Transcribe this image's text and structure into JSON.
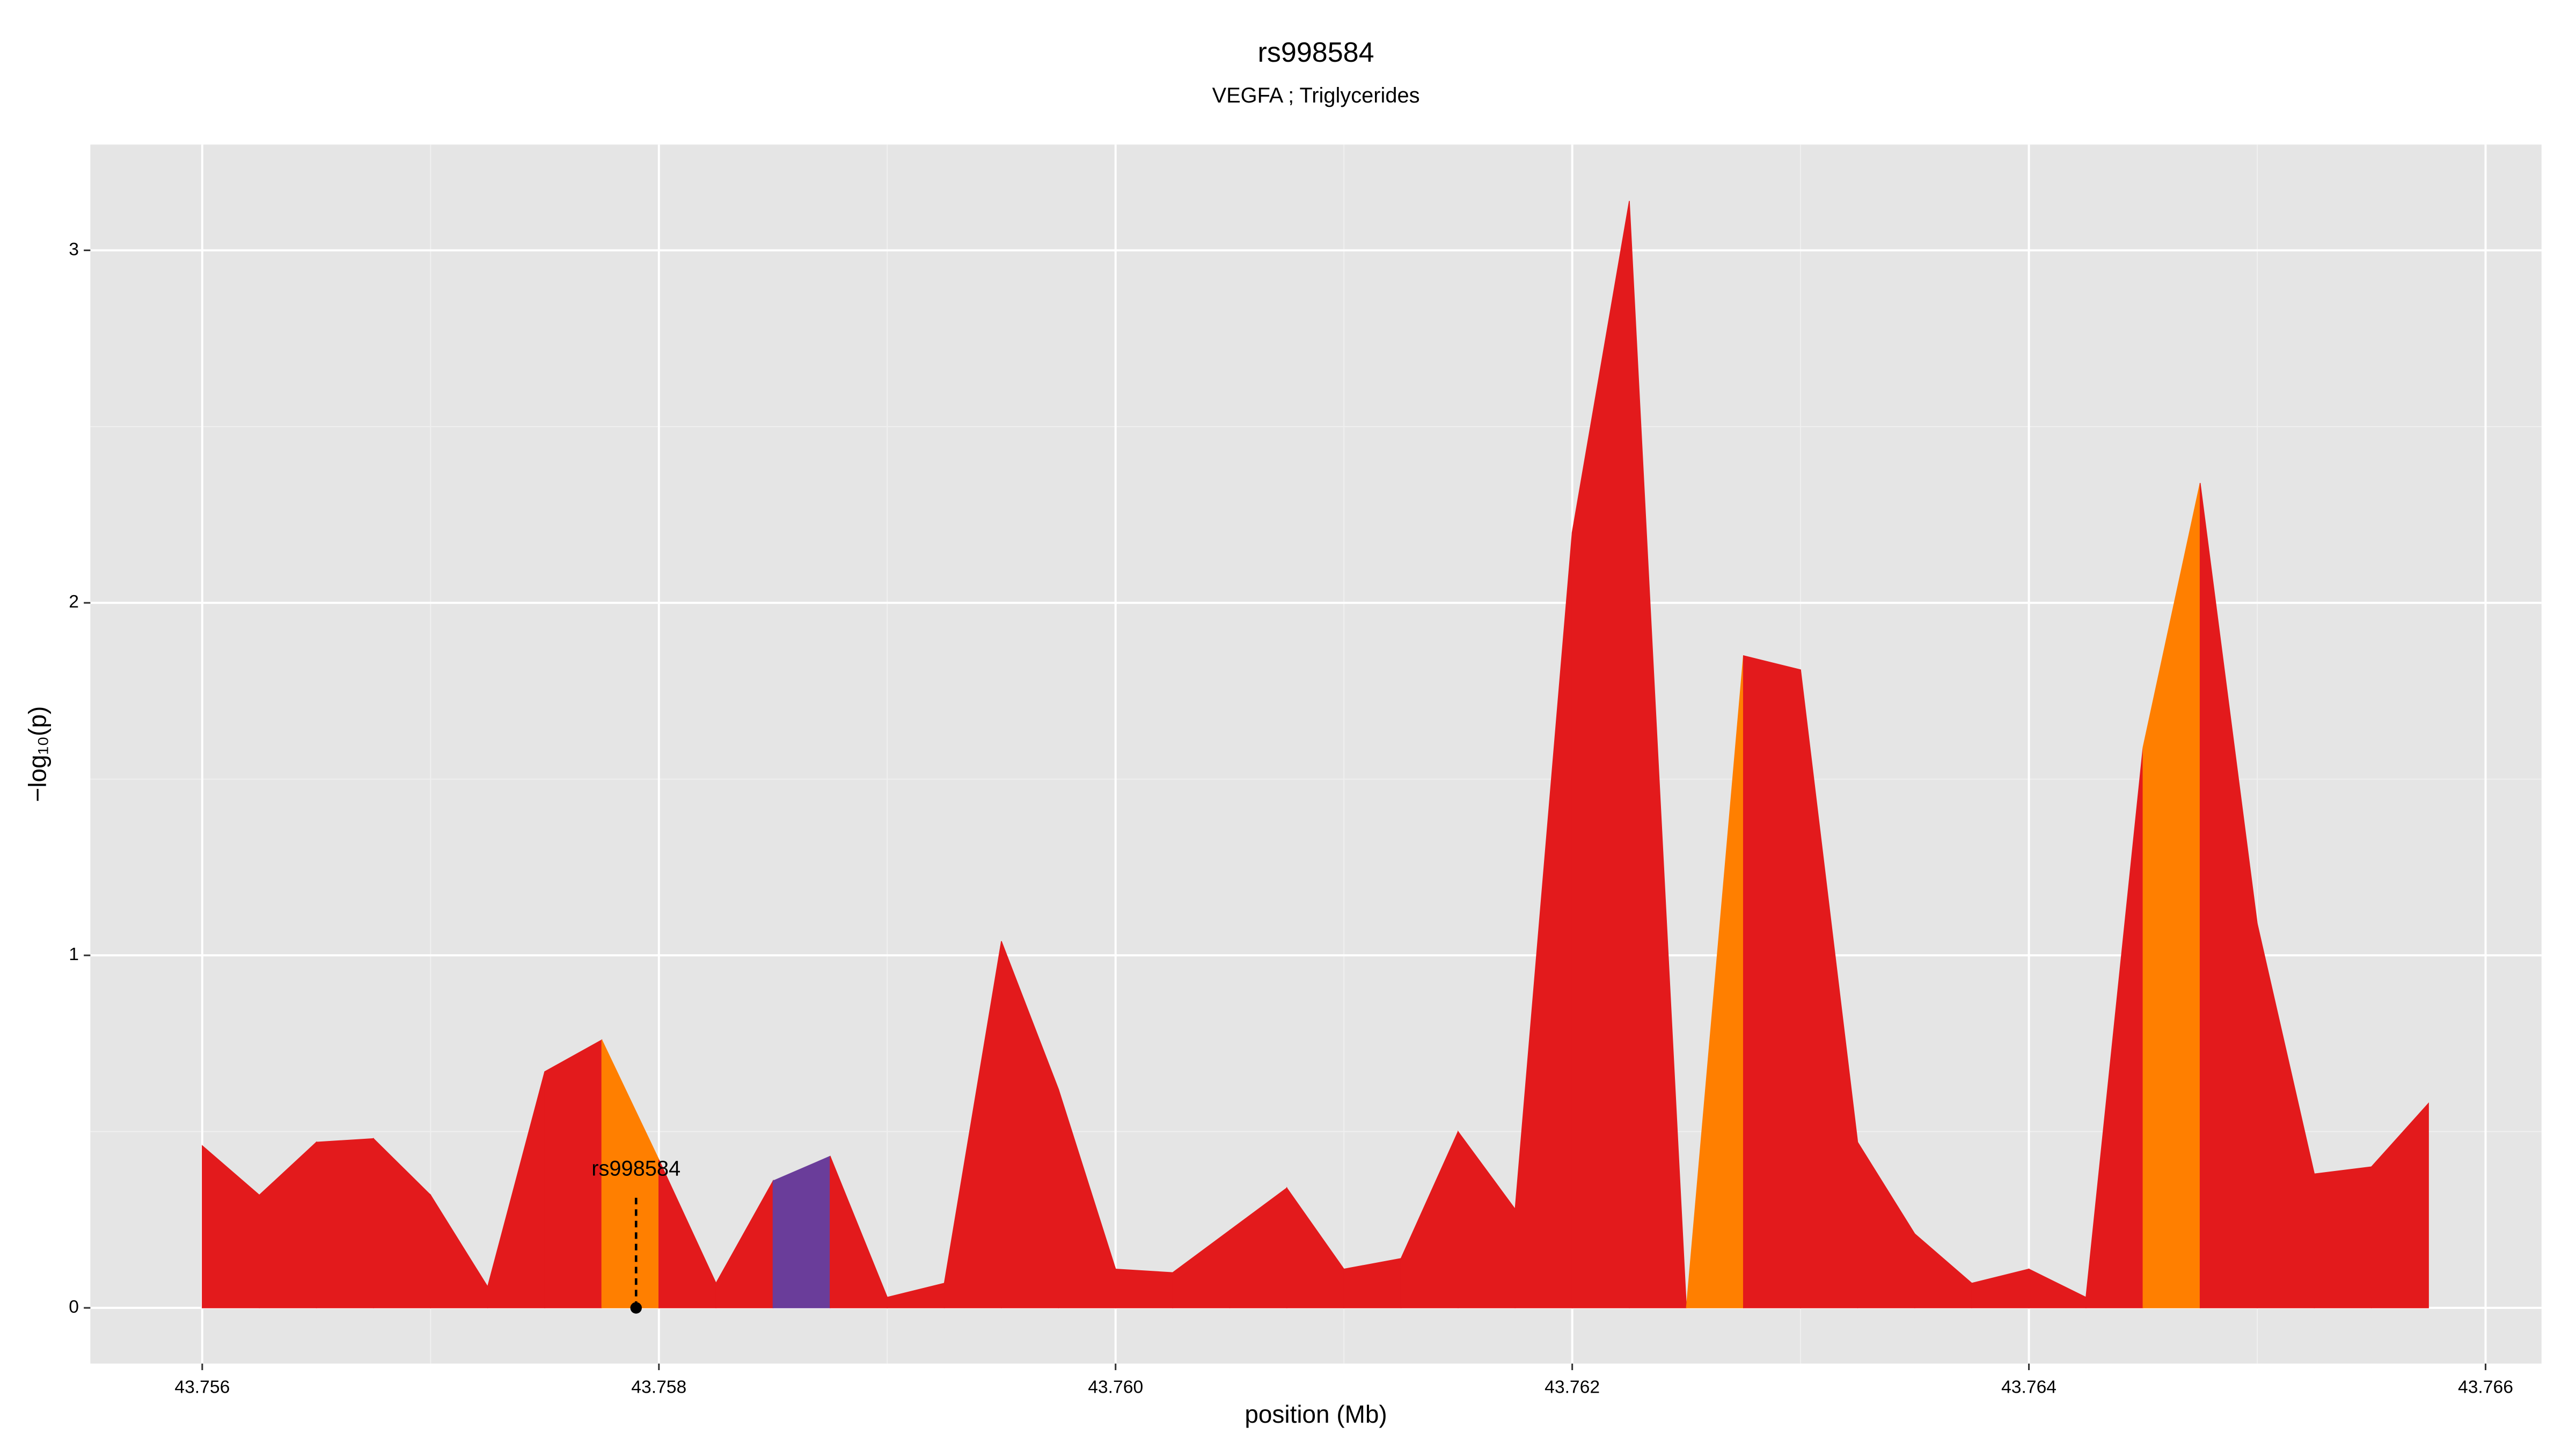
{
  "chart_data": {
    "type": "area",
    "title": "rs998584",
    "subtitle": "VEGFA ; Triglycerides",
    "x_label": "position (Mb)",
    "y_label": "−log₁₀(p)",
    "x": [
      43.756,
      43.75625,
      43.7565,
      43.75675,
      43.757,
      43.75725,
      43.7575,
      43.75775,
      43.758,
      43.75825,
      43.7585,
      43.75875,
      43.759,
      43.75925,
      43.7595,
      43.75975,
      43.76,
      43.76025,
      43.7605,
      43.76075,
      43.761,
      43.76125,
      43.7615,
      43.76175,
      43.762,
      43.76225,
      43.7625,
      43.76275,
      43.763,
      43.76325,
      43.7635,
      43.76375,
      43.764,
      43.76425,
      43.7645,
      43.76475,
      43.765,
      43.76525,
      43.7655,
      43.76575
    ],
    "values": [
      0.46,
      0.32,
      0.47,
      0.48,
      0.32,
      0.06,
      0.67,
      0.76,
      0.42,
      0.07,
      0.36,
      0.43,
      0.03,
      0.07,
      1.04,
      0.62,
      0.11,
      0.1,
      0.22,
      0.34,
      0.11,
      0.14,
      0.5,
      0.28,
      2.2,
      3.14,
      0.0,
      1.85,
      1.81,
      0.47,
      0.21,
      0.07,
      0.11,
      0.03,
      1.59,
      2.34,
      1.09,
      0.38,
      0.4,
      0.58
    ],
    "colors": [
      "#e31a1c",
      "#e31a1c",
      "#e31a1c",
      "#e31a1c",
      "#e31a1c",
      "#e31a1c",
      "#e31a1c",
      "#ff7f00",
      "#e31a1c",
      "#e31a1c",
      "#6a3d9a",
      "#e31a1c",
      "#e31a1c",
      "#e31a1c",
      "#e31a1c",
      "#e31a1c",
      "#e31a1c",
      "#e31a1c",
      "#e31a1c",
      "#e31a1c",
      "#e31a1c",
      "#e31a1c",
      "#e31a1c",
      "#e31a1c",
      "#e31a1c",
      "#e31a1c",
      "#ff7f00",
      "#e31a1c",
      "#e31a1c",
      "#e31a1c",
      "#e31a1c",
      "#e31a1c",
      "#e31a1c",
      "#e31a1c",
      "#ff7f00",
      "#e31a1c",
      "#e31a1c",
      "#e31a1c",
      "#e31a1c",
      "#e31a1c"
    ],
    "annotation": {
      "text": "rs998584",
      "x": 43.7579
    },
    "xlim": [
      43.75551,
      43.766245
    ],
    "ylim": [
      -0.158,
      3.3
    ],
    "xticks": [
      43.756,
      43.758,
      {
        "value": 43.76,
        "label": "43.760"
      },
      43.762,
      43.764,
      43.766
    ],
    "yticks": [
      0,
      1,
      2,
      3
    ],
    "grid": true
  }
}
